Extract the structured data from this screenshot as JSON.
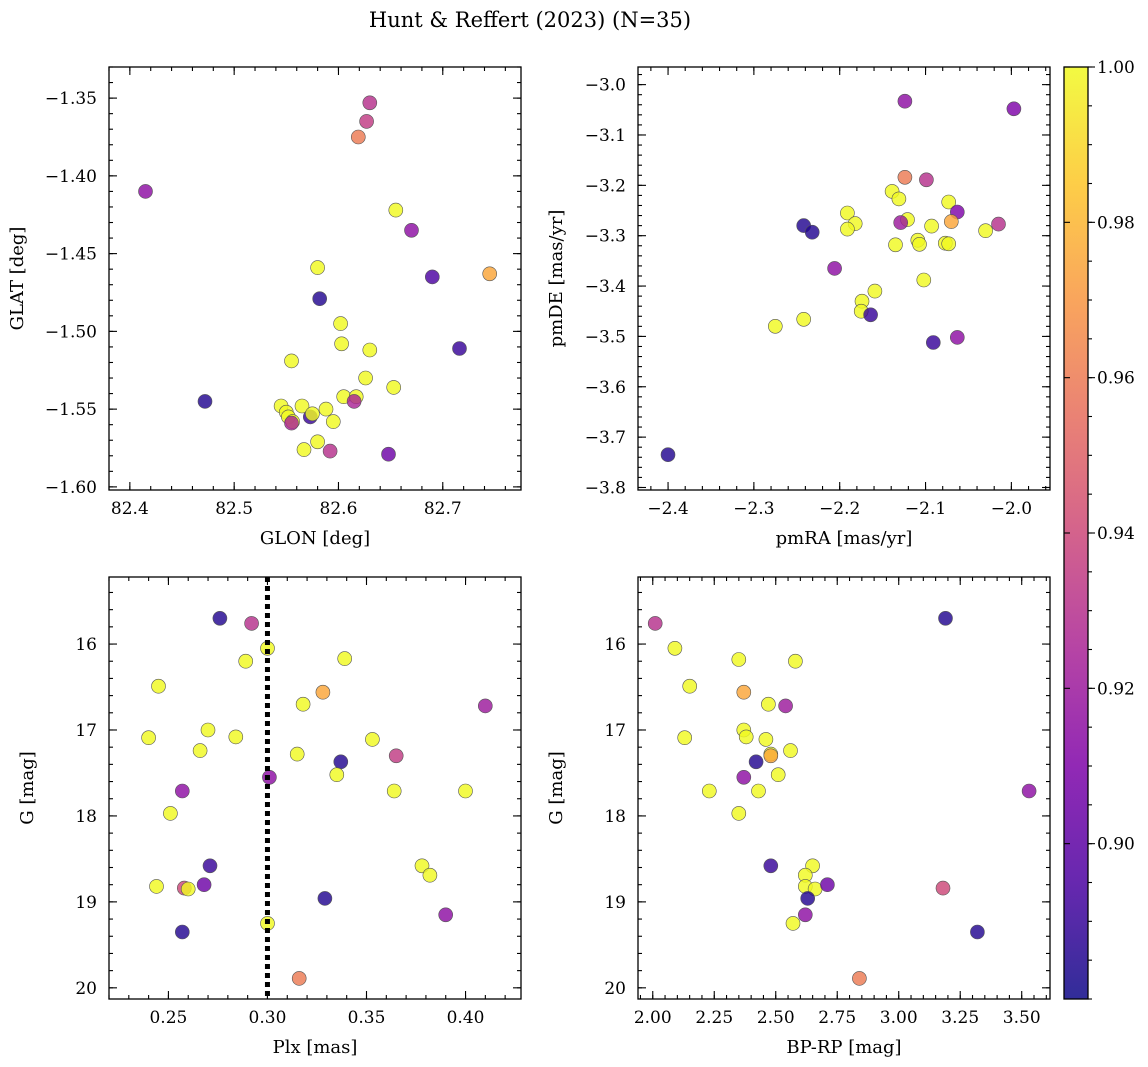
{
  "figure": {
    "title": "Hunt & Reffert (2023) (N=35)"
  },
  "colorbar": {
    "colormap": "plasma",
    "vmin": 0.88,
    "vmax": 1.0,
    "ticks": [
      0.9,
      0.92,
      0.94,
      0.96,
      0.98,
      1.0
    ],
    "tick_labels": [
      "0.90",
      "0.92",
      "0.94",
      "0.96",
      "0.98",
      "1.00"
    ]
  },
  "chart_data": [
    {
      "type": "scatter",
      "title": "",
      "xlabel": "GLON [deg]",
      "ylabel": "GLAT [deg]",
      "xlim": [
        82.38,
        82.775
      ],
      "ylim": [
        -1.602,
        -1.33
      ],
      "y_inverted": false,
      "xticks": [
        82.4,
        82.5,
        82.6,
        82.7
      ],
      "xtick_labels": [
        "82.4",
        "82.5",
        "82.6",
        "82.7"
      ],
      "yticks": [
        -1.35,
        -1.4,
        -1.45,
        -1.5,
        -1.55,
        -1.6
      ],
      "ytick_labels": [
        "−1.35",
        "−1.40",
        "−1.45",
        "−1.50",
        "−1.55",
        "−1.60"
      ],
      "x": [
        82.415,
        82.472,
        82.63,
        82.627,
        82.619,
        82.655,
        82.67,
        82.745,
        82.69,
        82.58,
        82.582,
        82.716,
        82.602,
        82.603,
        82.63,
        82.626,
        82.555,
        82.653,
        82.605,
        82.617,
        82.615,
        82.588,
        82.545,
        82.565,
        82.55,
        82.552,
        82.556,
        82.573,
        82.575,
        82.595,
        82.58,
        82.567,
        82.592,
        82.648,
        82.555
      ],
      "y": [
        -1.41,
        -1.545,
        -1.353,
        -1.365,
        -1.375,
        -1.422,
        -1.435,
        -1.463,
        -1.465,
        -1.459,
        -1.479,
        -1.511,
        -1.495,
        -1.508,
        -1.512,
        -1.53,
        -1.519,
        -1.536,
        -1.542,
        -1.542,
        -1.545,
        -1.55,
        -1.548,
        -1.548,
        -1.552,
        -1.555,
        -1.558,
        -1.555,
        -1.553,
        -1.558,
        -1.571,
        -1.576,
        -1.577,
        -1.579,
        -1.559
      ],
      "color_values": [
        0.915,
        0.885,
        0.93,
        0.935,
        0.96,
        1.0,
        0.915,
        0.975,
        0.895,
        1.0,
        0.885,
        0.89,
        1.0,
        1.0,
        1.0,
        1.0,
        1.0,
        1.0,
        1.0,
        1.0,
        0.925,
        1.0,
        1.0,
        1.0,
        1.0,
        1.0,
        1.0,
        0.89,
        1.0,
        1.0,
        1.0,
        1.0,
        0.93,
        0.905,
        0.925
      ],
      "vline": null
    },
    {
      "type": "scatter",
      "title": "",
      "xlabel": "pmRA [mas/yr]",
      "ylabel": "pmDE [mas/yr]",
      "xlim": [
        -2.435,
        -1.955
      ],
      "ylim": [
        -3.805,
        -2.965
      ],
      "y_inverted": false,
      "xticks": [
        -2.4,
        -2.3,
        -2.2,
        -2.1,
        -2.0
      ],
      "xtick_labels": [
        "−2.4",
        "−2.3",
        "−2.2",
        "−2.1",
        "−2.0"
      ],
      "yticks": [
        -3.0,
        -3.1,
        -3.2,
        -3.3,
        -3.4,
        -3.5,
        -3.6,
        -3.7,
        -3.8
      ],
      "ytick_labels": [
        "−3.0",
        "−3.1",
        "−3.2",
        "−3.3",
        "−3.4",
        "−3.5",
        "−3.6",
        "−3.7",
        "−3.8"
      ],
      "x": [
        -2.4,
        -2.124,
        -1.997,
        -2.124,
        -2.099,
        -2.139,
        -2.131,
        -2.073,
        -2.063,
        -2.191,
        -2.182,
        -2.121,
        -2.129,
        -2.093,
        -2.03,
        -2.015,
        -2.242,
        -2.232,
        -2.191,
        -2.07,
        -2.135,
        -2.109,
        -2.107,
        -2.077,
        -2.073,
        -2.206,
        -2.159,
        -2.174,
        -2.102,
        -2.175,
        -2.164,
        -2.091,
        -2.063,
        -2.275,
        -2.242
      ],
      "y": [
        -3.735,
        -3.033,
        -3.048,
        -3.184,
        -3.189,
        -3.212,
        -3.227,
        -3.233,
        -3.253,
        -3.255,
        -3.276,
        -3.268,
        -3.274,
        -3.281,
        -3.29,
        -3.277,
        -3.28,
        -3.293,
        -3.287,
        -3.272,
        -3.318,
        -3.309,
        -3.317,
        -3.315,
        -3.316,
        -3.365,
        -3.41,
        -3.43,
        -3.388,
        -3.45,
        -3.457,
        -3.512,
        -3.502,
        -3.48,
        -3.466
      ],
      "color_values": [
        0.885,
        0.915,
        0.91,
        0.96,
        0.93,
        1.0,
        1.0,
        1.0,
        0.91,
        1.0,
        1.0,
        1.0,
        0.92,
        1.0,
        1.0,
        0.93,
        0.885,
        0.885,
        1.0,
        0.975,
        1.0,
        1.0,
        1.0,
        1.0,
        1.0,
        0.915,
        1.0,
        1.0,
        1.0,
        1.0,
        0.89,
        0.89,
        0.915,
        1.0,
        1.0
      ],
      "vline": null
    },
    {
      "type": "scatter",
      "title": "",
      "xlabel": "Plx [mas]",
      "ylabel": "G [mag]",
      "xlim": [
        0.22,
        0.428
      ],
      "ylim": [
        20.13,
        15.22
      ],
      "y_inverted": true,
      "xticks": [
        0.25,
        0.3,
        0.35,
        0.4
      ],
      "xtick_labels": [
        "0.25",
        "0.30",
        "0.35",
        "0.40"
      ],
      "yticks": [
        16,
        17,
        18,
        19,
        20
      ],
      "ytick_labels": [
        "16",
        "17",
        "18",
        "19",
        "20"
      ],
      "x": [
        0.276,
        0.292,
        0.3,
        0.289,
        0.339,
        0.328,
        0.245,
        0.41,
        0.318,
        0.24,
        0.27,
        0.284,
        0.266,
        0.315,
        0.353,
        0.365,
        0.337,
        0.257,
        0.301,
        0.335,
        0.364,
        0.4,
        0.251,
        0.271,
        0.378,
        0.382,
        0.244,
        0.268,
        0.258,
        0.26,
        0.39,
        0.329,
        0.257,
        0.3,
        0.316
      ],
      "y": [
        15.7,
        15.76,
        16.05,
        16.2,
        16.17,
        16.56,
        16.49,
        16.72,
        16.7,
        17.09,
        17.0,
        17.08,
        17.24,
        17.28,
        17.11,
        17.3,
        17.37,
        17.71,
        17.55,
        17.52,
        17.71,
        17.71,
        17.97,
        18.58,
        18.58,
        18.69,
        18.82,
        18.8,
        18.84,
        18.85,
        19.15,
        18.96,
        19.35,
        19.25,
        19.89
      ],
      "color_values": [
        0.885,
        0.93,
        1.0,
        1.0,
        1.0,
        0.975,
        1.0,
        0.92,
        1.0,
        1.0,
        1.0,
        1.0,
        1.0,
        1.0,
        1.0,
        0.935,
        0.885,
        0.915,
        0.915,
        1.0,
        1.0,
        1.0,
        1.0,
        0.89,
        1.0,
        1.0,
        1.0,
        0.905,
        0.94,
        1.0,
        0.915,
        0.885,
        0.885,
        1.0,
        0.96
      ],
      "vline": {
        "x": 0.3,
        "style": "dotted"
      }
    },
    {
      "type": "scatter",
      "title": "",
      "xlabel": "BP-RP [mag]",
      "ylabel": "G [mag]",
      "xlim": [
        1.94,
        3.615
      ],
      "ylim": [
        20.13,
        15.22
      ],
      "y_inverted": true,
      "xticks": [
        2.0,
        2.25,
        2.5,
        2.75,
        3.0,
        3.25,
        3.5
      ],
      "xtick_labels": [
        "2.00",
        "2.25",
        "2.50",
        "2.75",
        "3.00",
        "3.25",
        "3.50"
      ],
      "yticks": [
        16,
        17,
        18,
        19,
        20
      ],
      "ytick_labels": [
        "16",
        "17",
        "18",
        "19",
        "20"
      ],
      "x": [
        2.01,
        2.09,
        2.15,
        2.35,
        2.58,
        2.37,
        2.13,
        2.47,
        2.54,
        2.37,
        2.38,
        2.46,
        2.56,
        2.48,
        2.48,
        2.42,
        2.51,
        2.37,
        2.43,
        2.23,
        2.35,
        2.65,
        2.62,
        2.62,
        2.66,
        2.71,
        2.63,
        2.48,
        3.18,
        2.57,
        2.62,
        3.19,
        3.53,
        3.32,
        2.84
      ],
      "y": [
        15.76,
        16.05,
        16.49,
        16.18,
        16.2,
        16.56,
        17.09,
        16.7,
        16.72,
        17.0,
        17.08,
        17.11,
        17.24,
        17.28,
        17.3,
        17.37,
        17.52,
        17.55,
        17.71,
        17.71,
        17.97,
        18.58,
        18.69,
        18.82,
        18.85,
        18.8,
        18.96,
        18.58,
        18.84,
        19.25,
        19.15,
        15.7,
        17.71,
        19.35,
        19.89
      ],
      "color_values": [
        0.93,
        1.0,
        1.0,
        1.0,
        1.0,
        0.975,
        1.0,
        1.0,
        0.92,
        1.0,
        1.0,
        1.0,
        1.0,
        1.0,
        0.975,
        0.885,
        1.0,
        0.915,
        1.0,
        1.0,
        1.0,
        1.0,
        1.0,
        1.0,
        1.0,
        0.905,
        0.885,
        0.89,
        0.94,
        1.0,
        0.915,
        0.885,
        0.915,
        0.885,
        0.96
      ],
      "vline": null
    }
  ]
}
